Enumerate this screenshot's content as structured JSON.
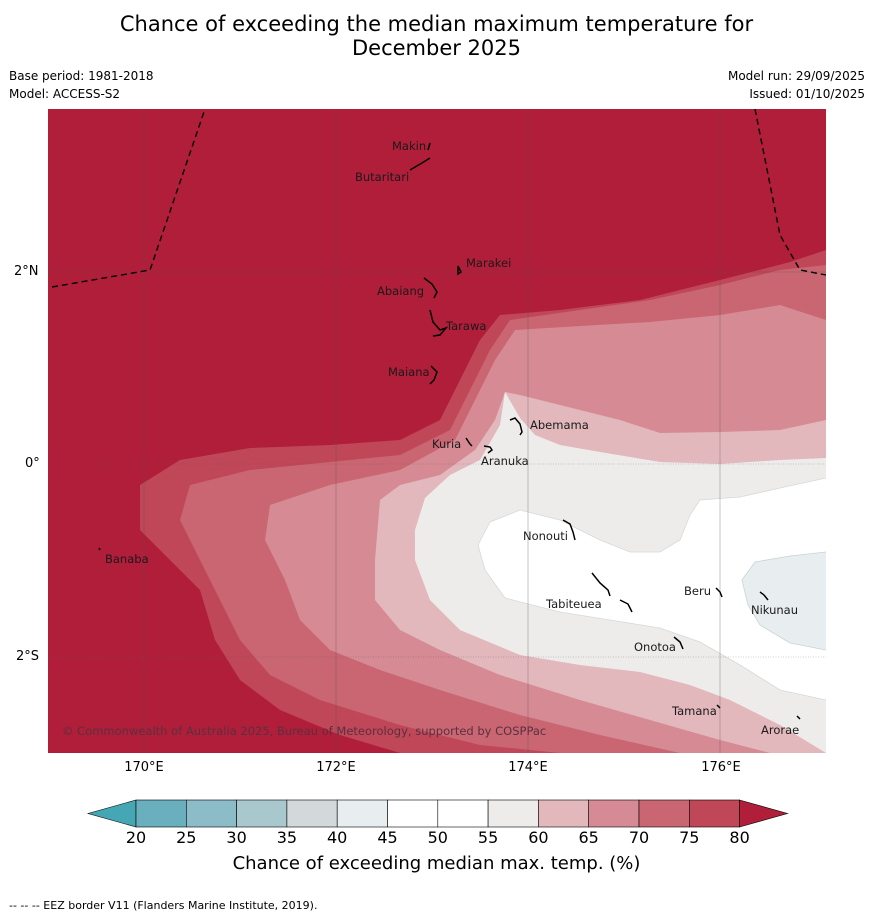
{
  "title_line1": "Chance of exceeding the median maximum temperature for",
  "title_line2": "December 2025",
  "base_period": "Base period: 1981-2018",
  "model": "Model: ACCESS-S2",
  "model_run": "Model run: 29/09/2025",
  "issued": "Issued: 01/10/2025",
  "lat_labels": [
    "2°N",
    "0°",
    "2°S"
  ],
  "lon_labels": [
    "170°E",
    "172°E",
    "174°E",
    "176°E"
  ],
  "islands": {
    "makin": "Makin",
    "butaritari": "Butaritari",
    "marakei": "Marakei",
    "abaiang": "Abaiang",
    "tarawa": "Tarawa",
    "maiana": "Maiana",
    "abemama": "Abemama",
    "kuria": "Kuria",
    "aranuka": "Aranuka",
    "banaba": "Banaba",
    "nonouti": "Nonouti",
    "beru": "Beru",
    "tabiteuea": "Tabiteuea",
    "nikunau": "Nikunau",
    "onotoa": "Onotoa",
    "tamana": "Tamana",
    "arorae": "Arorae"
  },
  "copyright": "© Commonwealth of Australia 2025, Bureau of Meteorology, supported by COSPPac",
  "colorbar": {
    "ticks": [
      "20",
      "25",
      "30",
      "35",
      "40",
      "45",
      "50",
      "55",
      "60",
      "65",
      "70",
      "75",
      "80"
    ],
    "colors": [
      "#45a6b4",
      "#6aafbe",
      "#8cbcc8",
      "#a9c8ce",
      "#d3d8da",
      "#e8eef0",
      "#ffffff",
      "#ffffff",
      "#eeeceb",
      "#e2b8bd",
      "#d58a94",
      "#c96672",
      "#bf4758",
      "#b01e3a"
    ],
    "label": "Chance of exceeding median max. temp. (%)"
  },
  "footer": "--  --  -- EEZ border V11 (Flanders Marine Institute, 2019).",
  "map_data": {
    "region": "Kiribati (Gilbert Islands)",
    "lat_range": [
      -3,
      3.4
    ],
    "lon_range": [
      169,
      177
    ]
  }
}
